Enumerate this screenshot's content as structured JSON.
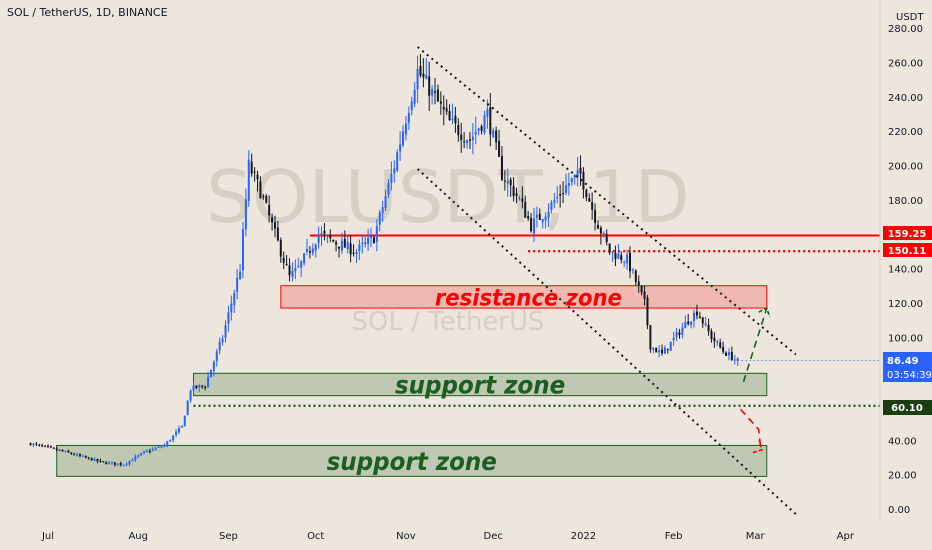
{
  "symbol_title": "SOL / TetherUS, 1D, BINANCE",
  "watermark": {
    "ticker": "SOLUSDT, 1D",
    "pair": "SOL / TetherUS"
  },
  "colors": {
    "up": "#2962ff",
    "down": "#131722",
    "resistance": "#ff0000",
    "support": "#1b5e20"
  },
  "price_labels": {
    "level_1": "159.25",
    "level_2": "150.11",
    "current_price": "86.49",
    "countdown": "03:54:39",
    "support_level": "60.10"
  },
  "chart_data": {
    "type": "candlestick",
    "title": "SOL / TetherUS, 1D, BINANCE",
    "currency_label": "USDT",
    "x_ticks": [
      "Jul",
      "Aug",
      "Sep",
      "Oct",
      "Nov",
      "Dec",
      "2022",
      "Feb",
      "Mar",
      "Apr"
    ],
    "y_ticks": [
      "0.00",
      "20.00",
      "40.00",
      "60.00",
      "80.00",
      "100.00",
      "120.00",
      "140.00",
      "160.00",
      "180.00",
      "200.00",
      "220.00",
      "240.00",
      "260.00",
      "280.00"
    ],
    "ylim": [
      0,
      282
    ],
    "close_path": [
      [
        "2021-06-25",
        38
      ],
      [
        "2021-07-05",
        34
      ],
      [
        "2021-07-20",
        27
      ],
      [
        "2021-07-27",
        26
      ],
      [
        "2021-08-03",
        33
      ],
      [
        "2021-08-10",
        37
      ],
      [
        "2021-08-16",
        48
      ],
      [
        "2021-08-19",
        70
      ],
      [
        "2021-08-24",
        72
      ],
      [
        "2021-08-30",
        100
      ],
      [
        "2021-09-05",
        140
      ],
      [
        "2021-09-08",
        200
      ],
      [
        "2021-09-12",
        185
      ],
      [
        "2021-09-18",
        155
      ],
      [
        "2021-09-22",
        135
      ],
      [
        "2021-09-25",
        140
      ],
      [
        "2021-10-02",
        160
      ],
      [
        "2021-10-08",
        155
      ],
      [
        "2021-10-15",
        150
      ],
      [
        "2021-10-21",
        158
      ],
      [
        "2021-10-28",
        200
      ],
      [
        "2021-11-02",
        235
      ],
      [
        "2021-11-05",
        255
      ],
      [
        "2021-11-09",
        245
      ],
      [
        "2021-11-16",
        225
      ],
      [
        "2021-11-23",
        215
      ],
      [
        "2021-11-27",
        225
      ],
      [
        "2021-11-29",
        230
      ],
      [
        "2021-12-04",
        195
      ],
      [
        "2021-12-10",
        180
      ],
      [
        "2021-12-14",
        165
      ],
      [
        "2021-12-20",
        175
      ],
      [
        "2021-12-27",
        190
      ],
      [
        "2021-12-31",
        195
      ],
      [
        "2022-01-05",
        170
      ],
      [
        "2022-01-10",
        150
      ],
      [
        "2022-01-16",
        145
      ],
      [
        "2022-01-22",
        120
      ],
      [
        "2022-01-24",
        95
      ],
      [
        "2022-01-28",
        90
      ],
      [
        "2022-02-06",
        110
      ],
      [
        "2022-02-09",
        115
      ],
      [
        "2022-02-14",
        100
      ],
      [
        "2022-02-18",
        92
      ],
      [
        "2022-02-23",
        86
      ]
    ],
    "last_price": 86.49,
    "horizontal_levels": [
      {
        "value": 159.25,
        "style": "solid",
        "color": "#ff0000"
      },
      {
        "value": 150.11,
        "style": "dotted",
        "color": "#ff0000"
      },
      {
        "value": 60.1,
        "style": "dotted",
        "color": "#1b5e20"
      }
    ],
    "zones": [
      {
        "label": "resistance zone",
        "from": 117,
        "to": 130,
        "start": "2021-09-19",
        "end": "2022-03-05",
        "color": "#ff0000"
      },
      {
        "label": "support zone",
        "from": 66,
        "to": 79,
        "start": "2021-08-20",
        "end": "2022-03-05",
        "color": "#1b5e20"
      },
      {
        "label": "support zone",
        "from": 19,
        "to": 37,
        "start": "2021-07-04",
        "end": "2022-03-05",
        "color": "#1b5e20"
      }
    ],
    "channel_lines": [
      {
        "from": [
          "2021-11-05",
          269
        ],
        "to": [
          "2022-03-15",
          90
        ]
      },
      {
        "from": [
          "2021-11-05",
          198
        ],
        "to": [
          "2022-03-15",
          -3
        ]
      }
    ],
    "projections": [
      {
        "direction": "up",
        "from": [
          "2022-02-25",
          74
        ],
        "to": [
          "2022-03-05",
          117
        ],
        "color": "#1b5e20"
      },
      {
        "direction": "down",
        "from": [
          "2022-02-24",
          58
        ],
        "to": [
          "2022-03-03",
          34
        ],
        "color": "#ff0000"
      }
    ]
  }
}
